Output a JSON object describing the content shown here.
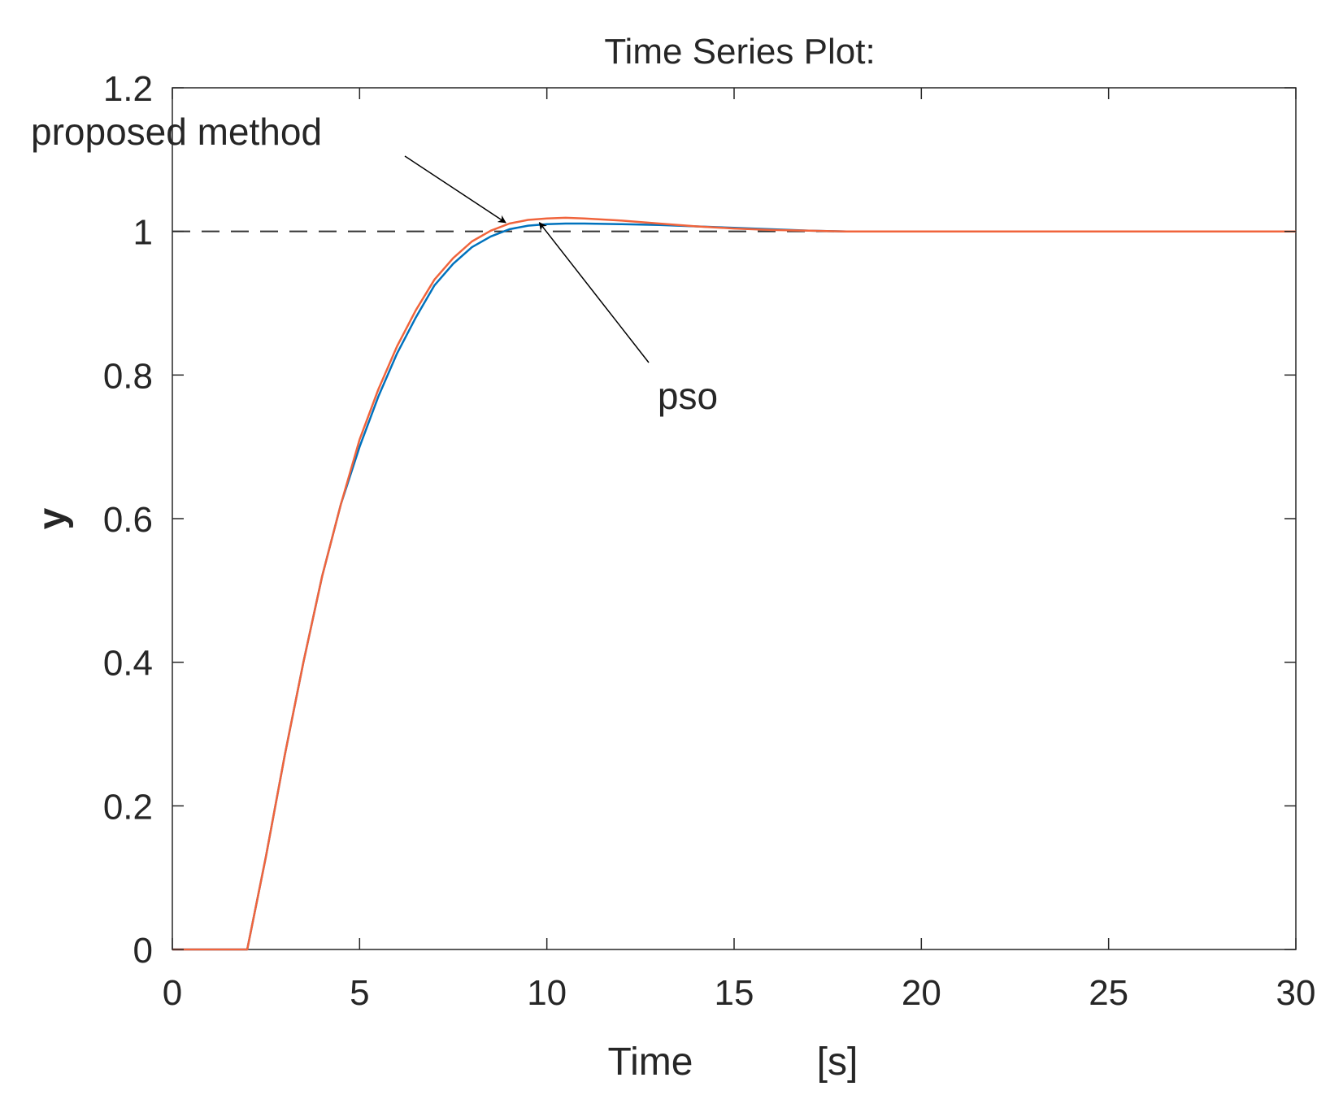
{
  "chart_data": {
    "type": "line",
    "title": "Time Series Plot:",
    "xlabel_parts": [
      "Time",
      "[s]"
    ],
    "ylabel": "y",
    "xlim": [
      0,
      30
    ],
    "ylim": [
      0,
      1.2
    ],
    "xticks": [
      0,
      5,
      10,
      15,
      20,
      25,
      30
    ],
    "xtick_labels": [
      "0",
      "5",
      "10",
      "15",
      "20",
      "25",
      "30"
    ],
    "yticks": [
      0,
      0.2,
      0.4,
      0.6,
      0.8,
      1.0,
      1.2
    ],
    "ytick_labels": [
      "0",
      "0.2",
      "0.4",
      "0.6",
      "0.8",
      "1",
      "1.2"
    ],
    "grid": false,
    "box": true,
    "reference": {
      "y": 1.0,
      "style": "dashed",
      "color": "#333333"
    },
    "series": [
      {
        "color": "#0072BD",
        "x": [
          0,
          2,
          2.5,
          3,
          3.5,
          4,
          4.5,
          5,
          5.5,
          6,
          6.5,
          7,
          7.5,
          8,
          8.5,
          9,
          9.5,
          10,
          10.5,
          11,
          12,
          13,
          14,
          15,
          16,
          17,
          18,
          20,
          25,
          30
        ],
        "y": [
          0,
          0,
          0.13,
          0.27,
          0.4,
          0.52,
          0.62,
          0.7,
          0.77,
          0.83,
          0.88,
          0.925,
          0.955,
          0.978,
          0.993,
          1.003,
          1.008,
          1.01,
          1.011,
          1.011,
          1.01,
          1.009,
          1.007,
          1.005,
          1.003,
          1.001,
          1.0,
          1.0,
          1.0,
          1.0
        ]
      },
      {
        "color": "#F0643C",
        "x": [
          0,
          2,
          2.5,
          3,
          3.5,
          4,
          4.5,
          5,
          5.5,
          6,
          6.5,
          7,
          7.5,
          8,
          8.5,
          9,
          9.5,
          10,
          10.5,
          11,
          12,
          13,
          14,
          15,
          16,
          17,
          18,
          20,
          25,
          30
        ],
        "y": [
          0,
          0,
          0.13,
          0.27,
          0.4,
          0.52,
          0.62,
          0.71,
          0.78,
          0.84,
          0.89,
          0.933,
          0.963,
          0.986,
          1.001,
          1.011,
          1.016,
          1.018,
          1.019,
          1.018,
          1.015,
          1.011,
          1.007,
          1.004,
          1.002,
          1.001,
          1.0,
          1.0,
          1.0,
          1.0
        ]
      }
    ],
    "annotations": [
      {
        "text": "proposed method",
        "arrow_to": [
          8.9,
          1.01
        ]
      },
      {
        "text": "pso",
        "arrow_to": [
          9.8,
          1.01
        ]
      }
    ]
  }
}
